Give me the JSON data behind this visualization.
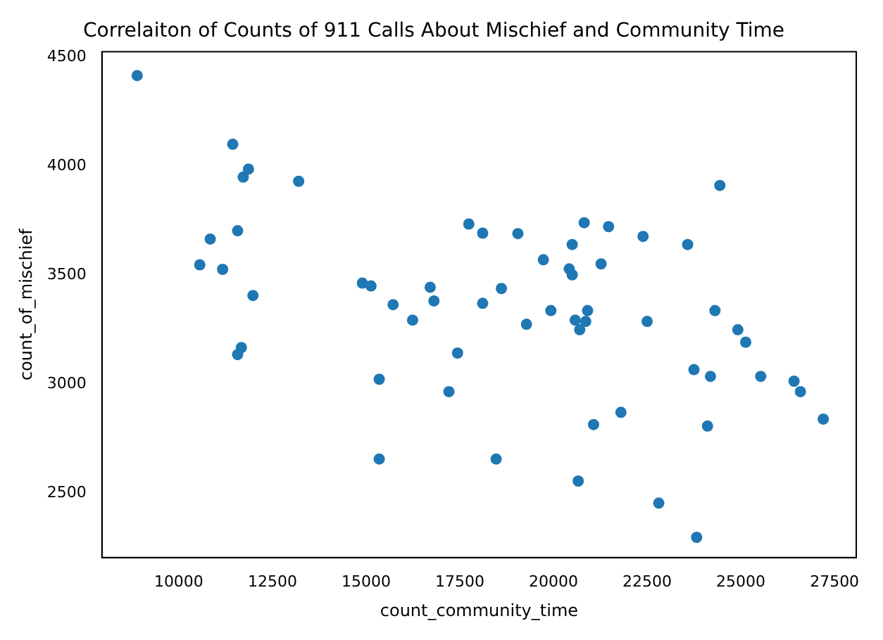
{
  "chart_data": {
    "type": "scatter",
    "title": "Correlaiton of Counts of 911 Calls About Mischief and Community Time",
    "xlabel": "count_community_time",
    "ylabel": "count_of_mischief",
    "x": [
      8890,
      11440,
      11860,
      11720,
      13200,
      10840,
      11570,
      10560,
      11170,
      11980,
      14900,
      15130,
      16710,
      16810,
      15720,
      17740,
      18110,
      18110,
      18610,
      11570,
      11670,
      16240,
      17440,
      15350,
      17210,
      15350,
      18470,
      24440,
      19050,
      20820,
      21470,
      22390,
      23580,
      20500,
      19730,
      20420,
      20500,
      21270,
      19930,
      20910,
      19280,
      20580,
      20860,
      20700,
      22500,
      24310,
      24920,
      25130,
      23750,
      24190,
      25530,
      26420,
      26590,
      27200,
      21800,
      21070,
      24110,
      20660,
      22810,
      23820
    ],
    "series": [
      {
        "color": "#1f77b4",
        "values": [
          4416,
          4101,
          3987,
          3950,
          3931,
          3666,
          3704,
          3548,
          3527,
          3407,
          3464,
          3451,
          3445,
          3382,
          3365,
          3735,
          3693,
          3371,
          3439,
          3136,
          3168,
          3294,
          3143,
          3023,
          2966,
          2657,
          2657,
          3912,
          3691,
          3741,
          3723,
          3678,
          3641,
          3641,
          3571,
          3529,
          3502,
          3552,
          3338,
          3338,
          3275,
          3294,
          3288,
          3250,
          3288,
          3338,
          3250,
          3193,
          3067,
          3036,
          3036,
          3014,
          2966,
          2840,
          2871,
          2815,
          2808,
          2556,
          2455,
          2298
        ]
      }
    ],
    "xlim": [
      7950,
      28080
    ],
    "ylim": [
      2205,
      4525
    ],
    "xticks": [
      10000,
      12500,
      15000,
      17500,
      20000,
      22500,
      25000,
      27500
    ],
    "yticks": [
      2500,
      3000,
      3500,
      4000,
      4500
    ],
    "grid": false,
    "legend": false,
    "marker": "circle"
  }
}
